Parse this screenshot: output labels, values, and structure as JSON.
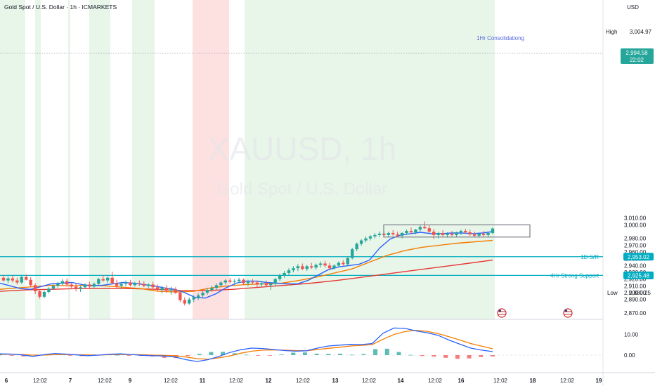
{
  "header": {
    "title": "Gold Spot / U.S. Dollar · 1h · ICMARKETS"
  },
  "watermark": {
    "symbol": "XAUUSD, 1h",
    "name": "Gold Spot / U.S. Dollar"
  },
  "price_axis": {
    "currency": "USD",
    "ticks": [
      "3,010.00",
      "3,000.00",
      "2,980.00",
      "2,970.00",
      "2,960.00",
      "2,950.00",
      "2,940.00",
      "2,930.00",
      "2,920.00",
      "2,910.00",
      "2,900.00",
      "2,890.00",
      "2,870.00"
    ],
    "high_label": "High",
    "high_value": "3,004.97",
    "low_label": "Low",
    "low_value": "2,880.25",
    "last_price": "2,994.58",
    "countdown": "22:02",
    "level_1d": "2,953.02",
    "level_4h": "2,925.48"
  },
  "macd_axis": {
    "ticks": [
      "10.00",
      "0.00"
    ]
  },
  "time_axis": {
    "ticks": [
      "6",
      "12:02",
      "7",
      "12:02",
      "9",
      "12:02",
      "11",
      "12:02",
      "12",
      "12:02",
      "13",
      "12:02",
      "14",
      "12:02",
      "16",
      "12:02",
      "18",
      "12:02",
      "19"
    ]
  },
  "annotations": {
    "box_label": "1Hr Consolidationg",
    "line_1d": "1D S/R",
    "line_4h": "4Hr Strong Support"
  },
  "colors": {
    "up": "#26a69a",
    "down": "#ef5350",
    "ema_fast": "#2962ff",
    "ema_mid": "#f57c00",
    "ema_slow": "#e53935",
    "level": "#00acc1",
    "bg_green": "#e8f5e9",
    "bg_red": "#fde0e0"
  },
  "chart_data": {
    "type": "candlestick",
    "symbol": "XAUUSD",
    "timeframe": "1h",
    "ylim": [
      2866,
      3016
    ],
    "ohlc_candles": [
      [
        2922,
        2926,
        2916,
        2918
      ],
      [
        2918,
        2924,
        2914,
        2921
      ],
      [
        2921,
        2925,
        2915,
        2918
      ],
      [
        2918,
        2922,
        2912,
        2915
      ],
      [
        2915,
        2925,
        2913,
        2923
      ],
      [
        2923,
        2927,
        2918,
        2919
      ],
      [
        2919,
        2923,
        2908,
        2911
      ],
      [
        2911,
        2914,
        2898,
        2902
      ],
      [
        2902,
        2905,
        2891,
        2894
      ],
      [
        2894,
        2903,
        2892,
        2901
      ],
      [
        2901,
        2908,
        2899,
        2906
      ],
      [
        2906,
        2912,
        2904,
        2910
      ],
      [
        2910,
        2916,
        2907,
        2913
      ],
      [
        2913,
        2920,
        2911,
        2917
      ],
      [
        2917,
        2921,
        2909,
        2912
      ],
      [
        2912,
        2915,
        2905,
        2909
      ],
      [
        2909,
        2913,
        2902,
        2906
      ],
      [
        2906,
        2910,
        2901,
        2908
      ],
      [
        2908,
        2914,
        2906,
        2912
      ],
      [
        2912,
        2916,
        2906,
        2909
      ],
      [
        2909,
        2915,
        2907,
        2913
      ],
      [
        2913,
        2922,
        2911,
        2920
      ],
      [
        2920,
        2926,
        2916,
        2918
      ],
      [
        2918,
        2924,
        2914,
        2922
      ],
      [
        2922,
        2931,
        2912,
        2914
      ],
      [
        2914,
        2919,
        2906,
        2910
      ],
      [
        2910,
        2916,
        2905,
        2913
      ],
      [
        2913,
        2918,
        2909,
        2915
      ],
      [
        2915,
        2919,
        2909,
        2911
      ],
      [
        2911,
        2916,
        2909,
        2914
      ],
      [
        2914,
        2918,
        2910,
        2913
      ],
      [
        2913,
        2917,
        2908,
        2910
      ],
      [
        2910,
        2914,
        2907,
        2912
      ],
      [
        2912,
        2916,
        2906,
        2908
      ],
      [
        2908,
        2912,
        2902,
        2904
      ],
      [
        2904,
        2910,
        2899,
        2907
      ],
      [
        2907,
        2911,
        2900,
        2903
      ],
      [
        2903,
        2909,
        2897,
        2905
      ],
      [
        2905,
        2908,
        2898,
        2900
      ],
      [
        2900,
        2903,
        2886,
        2889
      ],
      [
        2889,
        2893,
        2881,
        2884
      ],
      [
        2884,
        2893,
        2882,
        2890
      ],
      [
        2890,
        2896,
        2886,
        2893
      ],
      [
        2893,
        2899,
        2889,
        2896
      ],
      [
        2896,
        2902,
        2893,
        2900
      ],
      [
        2900,
        2907,
        2897,
        2904
      ],
      [
        2904,
        2910,
        2901,
        2907
      ],
      [
        2907,
        2914,
        2904,
        2911
      ],
      [
        2911,
        2917,
        2908,
        2915
      ],
      [
        2915,
        2920,
        2912,
        2918
      ],
      [
        2918,
        2922,
        2913,
        2916
      ],
      [
        2916,
        2920,
        2911,
        2917
      ],
      [
        2917,
        2922,
        2914,
        2919
      ],
      [
        2919,
        2921,
        2912,
        2914
      ],
      [
        2914,
        2919,
        2910,
        2916
      ],
      [
        2916,
        2920,
        2912,
        2915
      ],
      [
        2915,
        2918,
        2908,
        2912
      ],
      [
        2912,
        2917,
        2908,
        2914
      ],
      [
        2914,
        2918,
        2909,
        2911
      ],
      [
        2911,
        2914,
        2904,
        2913
      ],
      [
        2913,
        2922,
        2910,
        2920
      ],
      [
        2920,
        2928,
        2917,
        2925
      ],
      [
        2925,
        2932,
        2922,
        2929
      ],
      [
        2929,
        2936,
        2926,
        2933
      ],
      [
        2933,
        2939,
        2930,
        2936
      ],
      [
        2936,
        2942,
        2932,
        2939
      ],
      [
        2939,
        2943,
        2933,
        2935
      ],
      [
        2935,
        2941,
        2932,
        2939
      ],
      [
        2939,
        2944,
        2935,
        2937
      ],
      [
        2937,
        2943,
        2934,
        2941
      ],
      [
        2941,
        2946,
        2937,
        2943
      ],
      [
        2943,
        2947,
        2937,
        2940
      ],
      [
        2940,
        2944,
        2933,
        2936
      ],
      [
        2936,
        2942,
        2934,
        2940
      ],
      [
        2940,
        2946,
        2938,
        2944
      ],
      [
        2944,
        2948,
        2940,
        2942
      ],
      [
        2942,
        2953,
        2940,
        2951
      ],
      [
        2951,
        2966,
        2949,
        2964
      ],
      [
        2964,
        2974,
        2961,
        2972
      ],
      [
        2972,
        2979,
        2969,
        2977
      ],
      [
        2977,
        2983,
        2974,
        2980
      ],
      [
        2980,
        2985,
        2977,
        2983
      ],
      [
        2983,
        2988,
        2980,
        2985
      ],
      [
        2985,
        2990,
        2982,
        2987
      ],
      [
        2987,
        2991,
        2983,
        2985
      ],
      [
        2985,
        2990,
        2982,
        2988
      ],
      [
        2988,
        2992,
        2984,
        2986
      ],
      [
        2986,
        2990,
        2982,
        2984
      ],
      [
        2984,
        2989,
        2980,
        2988
      ],
      [
        2988,
        2993,
        2985,
        2991
      ],
      [
        2991,
        2996,
        2987,
        2989
      ],
      [
        2989,
        2994,
        2986,
        2993
      ],
      [
        2993,
        2999,
        2990,
        2997
      ],
      [
        2997,
        3005,
        2994,
        2995
      ],
      [
        2995,
        2999,
        2988,
        2990
      ],
      [
        2990,
        2994,
        2979,
        2985
      ],
      [
        2985,
        2990,
        2980,
        2988
      ],
      [
        2988,
        2992,
        2983,
        2985
      ],
      [
        2985,
        2989,
        2981,
        2987
      ],
      [
        2987,
        2991,
        2983,
        2985
      ],
      [
        2985,
        2990,
        2982,
        2989
      ],
      [
        2989,
        2993,
        2985,
        2991
      ],
      [
        2991,
        2994,
        2987,
        2989
      ],
      [
        2989,
        2993,
        2984,
        2986
      ],
      [
        2986,
        2990,
        2982,
        2984
      ],
      [
        2984,
        2988,
        2981,
        2987
      ],
      [
        2987,
        2991,
        2983,
        2985
      ],
      [
        2985,
        2989,
        2982,
        2988
      ],
      [
        2988,
        2996,
        2986,
        2994.58
      ]
    ],
    "ema_fast": [
      2914,
      2910,
      2906,
      2905,
      2909,
      2913,
      2914,
      2915,
      2912,
      2910,
      2911,
      2913,
      2915,
      2914,
      2912,
      2910,
      2907,
      2905,
      2900,
      2893,
      2892,
      2898,
      2907,
      2914,
      2917,
      2917,
      2915,
      2914,
      2913,
      2913,
      2918,
      2926,
      2934,
      2938,
      2940,
      2942,
      2948,
      2966,
      2979,
      2985,
      2987,
      2989,
      2987,
      2987,
      2988,
      2988,
      2987,
      2988,
      2990
    ],
    "ema_mid": [
      2905,
      2907,
      2909,
      2911,
      2910,
      2911,
      2910,
      2908,
      2906,
      2902,
      2901,
      2902,
      2907,
      2910,
      2912,
      2913,
      2914,
      2918,
      2923,
      2929,
      2935,
      2945,
      2955,
      2962,
      2967,
      2970,
      2973,
      2975,
      2977
    ],
    "ema_slow": [
      2902,
      2904,
      2905,
      2906,
      2906,
      2906,
      2905,
      2903,
      2903,
      2905,
      2908,
      2911,
      2914,
      2918,
      2923,
      2928,
      2933,
      2938,
      2943,
      2948
    ],
    "levels": [
      {
        "name": "1D S/R",
        "value": 2953.02
      },
      {
        "name": "4Hr Strong Support",
        "value": 2925.48
      }
    ],
    "consolidation_box": {
      "label": "1Hr Consolidationg",
      "top": 3000,
      "bottom": 2982
    },
    "high": 3004.97,
    "low": 2880.25,
    "last": 2994.58,
    "macd": {
      "ylim": [
        -3,
        14
      ],
      "macd_line": [
        0.6,
        0.5,
        0.1,
        -0.6,
        0.2,
        0.8,
        0.5,
        0.1,
        -0.3,
        0,
        0.4,
        0.6,
        0.3,
        -0.1,
        -0.3,
        -0.4,
        -0.9,
        -2.2,
        -3.1,
        -2.2,
        -0.6,
        1.3,
        2.6,
        3.4,
        3.2,
        2.7,
        2.2,
        1.9,
        2.1,
        3.4,
        4.4,
        4.8,
        5.2,
        5.1,
        5.6,
        10.6,
        13.1,
        12.9,
        11.7,
        10.8,
        9.6,
        7.3,
        5.3,
        3.4,
        2.4,
        1.7
      ],
      "signal_line": [
        0.4,
        0.4,
        0.3,
        0,
        0,
        0.2,
        0.3,
        0.2,
        0.1,
        0,
        0.2,
        0.3,
        0.3,
        0.2,
        0,
        -0.1,
        -0.3,
        -0.9,
        -1.7,
        -2,
        -1.3,
        -0.4,
        0.9,
        1.9,
        2.4,
        2.5,
        2.4,
        2.2,
        2.1,
        2.7,
        3.3,
        3.8,
        4.4,
        4.7,
        5.1,
        7.7,
        10,
        11.4,
        12,
        11.5,
        10.4,
        8.9,
        7.3,
        5.6,
        4.3,
        3.1
      ],
      "histogram": [
        0.2,
        -0.3,
        -0.6,
        0.2,
        0.5,
        0.3,
        -0.2,
        -0.5,
        0.3,
        0.4,
        0.1,
        -0.3,
        -0.4,
        -0.7,
        -1.3,
        -1.4,
        -0.4,
        0.6,
        1.5,
        1.6,
        0.9,
        0.2,
        -0.1,
        -0.2,
        0.3,
        1.2,
        1.3,
        0.7,
        0.6,
        0.7,
        0.2,
        0.5,
        2.9,
        3.1,
        1.5,
        0.1,
        -0.4,
        -0.7,
        -1.3,
        -1.8,
        -1.6,
        -0.9,
        -0.6
      ]
    }
  }
}
